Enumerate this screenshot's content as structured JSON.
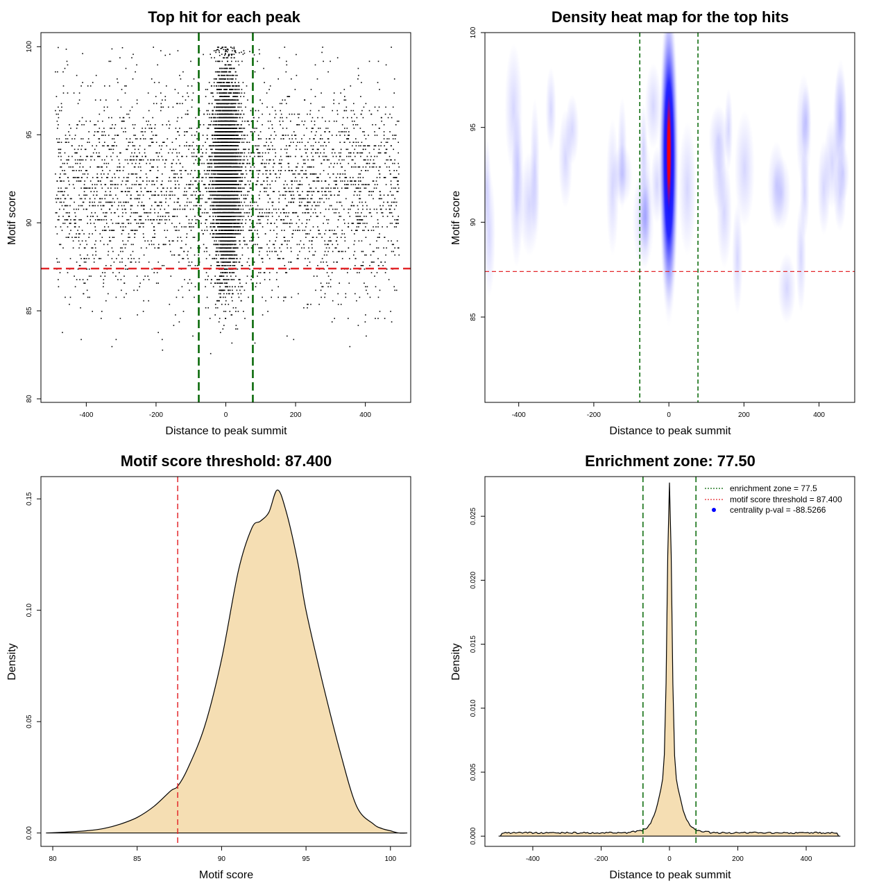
{
  "colors": {
    "threshold_line": "#e3262a",
    "zone_line": "#006400",
    "density_fill": "#f5deb3",
    "heat_blue": "#0000ff",
    "heat_red": "#ff0000",
    "legend_dot": "#0000ff"
  },
  "chart_data": [
    {
      "id": "scatter",
      "type": "scatter",
      "title": "Top hit for each peak",
      "xlabel": "Distance to peak summit",
      "ylabel": "Motif score",
      "xlim": [
        -530,
        530
      ],
      "ylim": [
        79.8,
        100.8
      ],
      "xticks": [
        -400,
        -200,
        0,
        200,
        400
      ],
      "yticks": [
        80,
        85,
        90,
        95,
        100
      ],
      "hline": 87.4,
      "vlines": [
        -77.5,
        77.5
      ],
      "points_summary": {
        "n_background": 3600,
        "background_x_range": [
          -490,
          495
        ],
        "background_y_mean": 92,
        "background_y_sd": 3,
        "n_central": 5500,
        "central_x_sd": 18,
        "central_y_mean": 93,
        "central_y_sd": 2.8,
        "y_max": 100
      }
    },
    {
      "id": "heatmap",
      "type": "heatmap",
      "title": "Density heat map for the top hits",
      "xlabel": "Distance to peak summit",
      "ylabel": "Motif score",
      "xlim": [
        -490,
        495
      ],
      "ylim": [
        80.5,
        100
      ],
      "xticks": [
        -400,
        -200,
        0,
        200,
        400
      ],
      "yticks": [
        85,
        90,
        95,
        100
      ],
      "hline": 87.4,
      "vlines": [
        -77.5,
        77.5
      ],
      "hotspot": {
        "x": 0,
        "y": 93.7,
        "x_sd": 5,
        "y_sd": 2.1
      },
      "blue_halo": {
        "x": 0,
        "y": 93.3,
        "x_sd": 9,
        "y_sd": 3.0
      }
    },
    {
      "id": "score_density",
      "type": "area",
      "title": "Motif score threshold: 87.400",
      "xlabel": "Motif score",
      "ylabel": "Density",
      "xlim": [
        79.3,
        101.2
      ],
      "ylim": [
        -0.006,
        0.16
      ],
      "xticks": [
        80,
        85,
        90,
        95,
        100
      ],
      "yticks": [
        0.0,
        0.05,
        0.1,
        0.15
      ],
      "ytick_labels": [
        "0.00",
        "0.05",
        "0.10",
        "0.15"
      ],
      "vline": 87.4,
      "x": [
        79.6,
        81,
        82,
        83,
        84,
        85,
        86,
        87,
        87.4,
        88,
        89,
        90,
        91,
        91.8,
        92.3,
        92.8,
        93.3,
        93.8,
        94.5,
        95,
        96,
        97,
        98,
        99,
        99.5,
        100,
        100.5,
        101
      ],
      "y": [
        0.0,
        0.0005,
        0.001,
        0.002,
        0.004,
        0.007,
        0.012,
        0.019,
        0.021,
        0.029,
        0.048,
        0.078,
        0.118,
        0.137,
        0.14,
        0.144,
        0.154,
        0.145,
        0.122,
        0.1,
        0.067,
        0.037,
        0.012,
        0.004,
        0.002,
        0.001,
        0.0,
        0.0
      ]
    },
    {
      "id": "distance_density",
      "type": "area",
      "title": "Enrichment zone: 77.50",
      "xlabel": "Distance to peak summit",
      "ylabel": "Density",
      "xlim": [
        -540,
        542
      ],
      "ylim": [
        -0.0008,
        0.0281
      ],
      "xticks": [
        -400,
        -200,
        0,
        200,
        400
      ],
      "yticks": [
        0.0,
        0.005,
        0.01,
        0.015,
        0.02,
        0.025
      ],
      "ytick_labels": [
        "0.000",
        "0.005",
        "0.010",
        "0.015",
        "0.020",
        "0.025"
      ],
      "vlines": [
        -77.5,
        77.5
      ],
      "peak": {
        "x": 0,
        "y": 0.027
      },
      "baseline": 0.0002,
      "x_range": [
        -500,
        500
      ],
      "legend": [
        {
          "label": "enrichment zone = 77.5",
          "style": "dotted-green"
        },
        {
          "label": "motif score threshold = 87.400",
          "style": "dotted-red"
        },
        {
          "label": "centrality p-val = -88.5266",
          "style": "dot-blue"
        }
      ]
    }
  ]
}
